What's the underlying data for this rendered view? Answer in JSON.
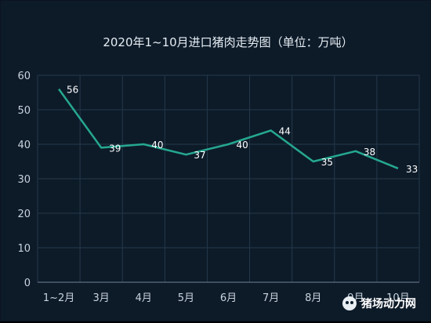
{
  "chart_data": {
    "type": "line",
    "title": "2020年1~10月进口猪肉走势图（单位：万吨）",
    "categories": [
      "1~2月",
      "3月",
      "4月",
      "5月",
      "6月",
      "7月",
      "8月",
      "9月",
      "10月"
    ],
    "series": [
      {
        "values": [
          56,
          39,
          40,
          37,
          40,
          44,
          35,
          38,
          33
        ]
      }
    ],
    "ylim": [
      0,
      60
    ],
    "yticks": [
      0,
      10,
      20,
      30,
      40,
      50,
      60
    ],
    "grid": true,
    "line_color": "#25a890"
  },
  "watermark": {
    "text": "猪场动力网"
  }
}
